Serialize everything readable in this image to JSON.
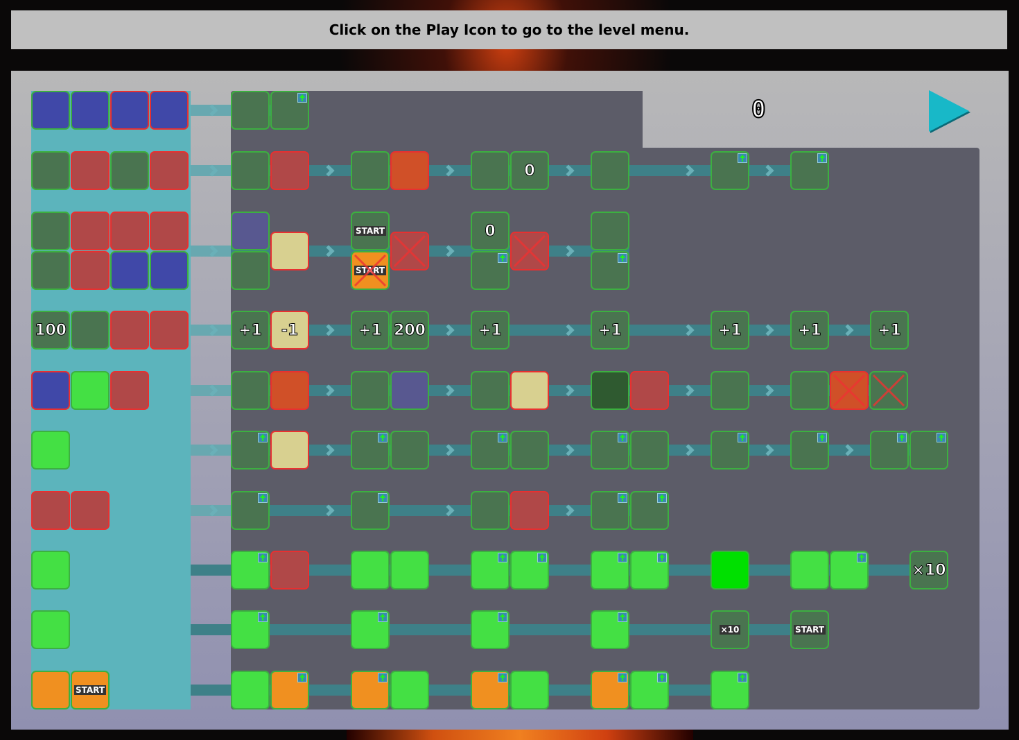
{
  "header": {
    "instruction": "Click on the Play Icon to go to the level menu."
  },
  "score": "0",
  "play_button": {
    "icon": "play-icon",
    "color": "#18b8c8"
  },
  "colors": {
    "dg": "#4a7450",
    "dgb": "#3cb040",
    "red": "#b04848",
    "redb": "#e83030",
    "blue": "#4048a8",
    "yel": "#d8d090",
    "org": "#d05028",
    "bg": "#44e044",
    "pg": "#00e000",
    "pur": "#585890",
    "fire": "#f09020",
    "dk": "#2f5a30"
  },
  "rows": [
    {
      "palette": [
        [
          "blue",
          "dgb"
        ],
        [
          "blue",
          "dgb"
        ],
        [
          "blue",
          "redb"
        ],
        [
          "blue",
          "redb"
        ]
      ],
      "stages": [
        [
          {
            "c": "dg"
          },
          {
            "c": "dg",
            "up": true
          }
        ]
      ]
    },
    {
      "palette": [
        [
          "dg",
          "dgb"
        ],
        [
          "red",
          "redb"
        ],
        [
          "dg",
          "dgb"
        ],
        [
          "red",
          "redb"
        ]
      ],
      "stages": [
        [
          {
            "c": "dg"
          },
          {
            "c": "red"
          }
        ],
        [
          {
            "c": "dg"
          },
          {
            "c": "org"
          }
        ],
        [
          {
            "c": "dg"
          },
          {
            "c": "dg",
            "t": "0"
          }
        ],
        [
          {
            "c": "dg"
          }
        ],
        [
          {
            "c": "dg",
            "up": true
          }
        ],
        [
          {
            "c": "dg",
            "up": true
          }
        ]
      ]
    },
    {
      "double": true,
      "palette": [
        [
          "dg",
          "dgb"
        ],
        [
          "red",
          "redb"
        ],
        [
          "red",
          "redb"
        ],
        [
          "red",
          "redb"
        ],
        [
          "dg",
          "dgb"
        ],
        [
          "red",
          "redb"
        ],
        [
          "blue",
          "dgb"
        ],
        [
          "blue",
          "dgb"
        ]
      ],
      "stages": [
        [
          {
            "c": "pur"
          },
          {
            "c": "dg",
            "r": 1
          },
          {
            "c": "yel",
            "m": 1
          }
        ],
        [
          {
            "c": "dg",
            "lbl": "START"
          },
          {
            "c": "fire",
            "r": 1,
            "lbl": "START",
            "x": true
          },
          {
            "c": "red",
            "m": 1,
            "x": true
          }
        ],
        [
          {
            "c": "dg",
            "t": "0"
          },
          {
            "c": "dg",
            "r": 1,
            "up": true
          },
          {
            "c": "red",
            "m": 1,
            "x": true
          }
        ],
        [
          {
            "c": "dg"
          },
          {
            "c": "dg",
            "r": 1,
            "up": true
          }
        ]
      ]
    },
    {
      "palette": [
        [
          "dg",
          "dgb",
          "100"
        ],
        [
          "dg",
          "dgb"
        ],
        [
          "red",
          "redb"
        ],
        [
          "red",
          "redb"
        ]
      ],
      "stages": [
        [
          {
            "c": "dg",
            "t": "+1"
          },
          {
            "c": "yel",
            "t": "-1"
          }
        ],
        [
          {
            "c": "dg",
            "t": "+1"
          },
          {
            "c": "dg",
            "t": "200"
          }
        ],
        [
          {
            "c": "dg",
            "t": "+1"
          }
        ],
        [
          {
            "c": "dg",
            "t": "+1"
          }
        ],
        [
          {
            "c": "dg",
            "t": "+1"
          }
        ],
        [
          {
            "c": "dg",
            "t": "+1"
          }
        ],
        [
          {
            "c": "dg",
            "t": "+1"
          }
        ]
      ]
    },
    {
      "palette": [
        [
          "blue",
          "redb"
        ],
        [
          "bg",
          "dgb"
        ],
        [
          "red",
          "redb"
        ]
      ],
      "stages": [
        [
          {
            "c": "dg"
          },
          {
            "c": "org"
          }
        ],
        [
          {
            "c": "dg"
          },
          {
            "c": "pur"
          }
        ],
        [
          {
            "c": "dg"
          },
          {
            "c": "yel"
          }
        ],
        [
          {
            "c": "dk"
          },
          {
            "c": "red"
          }
        ],
        [
          {
            "c": "dg"
          }
        ],
        [
          {
            "c": "dg"
          },
          {
            "c": "org",
            "x": true
          },
          {
            "c": "dg",
            "x": true
          }
        ]
      ]
    },
    {
      "palette": [
        [
          "bg",
          "dgb"
        ]
      ],
      "stages": [
        [
          {
            "c": "dg",
            "up": true
          },
          {
            "c": "yel"
          }
        ],
        [
          {
            "c": "dg",
            "up": true
          },
          {
            "c": "dg"
          }
        ],
        [
          {
            "c": "dg",
            "up": true
          },
          {
            "c": "dg"
          }
        ],
        [
          {
            "c": "dg",
            "up": true
          },
          {
            "c": "dg"
          }
        ],
        [
          {
            "c": "dg",
            "up": true
          }
        ],
        [
          {
            "c": "dg",
            "up": true
          }
        ],
        [
          {
            "c": "dg",
            "up": true
          },
          {
            "c": "dg",
            "up": true
          }
        ]
      ]
    },
    {
      "palette": [
        [
          "red",
          "redb"
        ],
        [
          "red",
          "redb"
        ]
      ],
      "stages": [
        [
          {
            "c": "dg",
            "up": true
          }
        ],
        [
          {
            "c": "dg",
            "up": true
          }
        ],
        [
          {
            "c": "dg"
          },
          {
            "c": "red"
          }
        ],
        [
          {
            "c": "dg",
            "up": true
          },
          {
            "c": "dg",
            "up": true
          }
        ]
      ]
    },
    {
      "plain": true,
      "palette": [
        [
          "bg",
          "dgb"
        ]
      ],
      "stages": [
        [
          {
            "c": "bg",
            "up": true
          },
          {
            "c": "red"
          }
        ],
        [
          {
            "c": "bg"
          },
          {
            "c": "bg"
          }
        ],
        [
          {
            "c": "bg",
            "up": true
          },
          {
            "c": "bg",
            "up": true
          }
        ],
        [
          {
            "c": "bg",
            "up": true
          },
          {
            "c": "bg",
            "up": true
          }
        ],
        [
          {
            "c": "pg"
          }
        ],
        [
          {
            "c": "bg"
          },
          {
            "c": "bg",
            "up": true
          }
        ],
        [
          {
            "c": "dg",
            "t": "×10",
            "s": 1
          }
        ]
      ]
    },
    {
      "plain": true,
      "palette": [
        [
          "bg",
          "dgb"
        ]
      ],
      "stages": [
        [
          {
            "c": "bg",
            "up": true
          }
        ],
        [
          {
            "c": "bg",
            "up": true
          }
        ],
        [
          {
            "c": "bg",
            "up": true
          }
        ],
        [
          {
            "c": "bg",
            "up": true
          }
        ],
        [
          {
            "c": "dg",
            "lbl": "×10"
          }
        ],
        [
          {
            "c": "dg",
            "lbl": "START"
          }
        ]
      ]
    },
    {
      "plain": true,
      "palette": [
        [
          "fire",
          "dgb"
        ],
        [
          "fire",
          "dgb",
          "START"
        ]
      ],
      "stages": [
        [
          {
            "c": "bg"
          },
          {
            "c": "fire",
            "up": true
          }
        ],
        [
          {
            "c": "fire",
            "up": true
          },
          {
            "c": "bg"
          }
        ],
        [
          {
            "c": "fire",
            "up": true
          },
          {
            "c": "bg"
          }
        ],
        [
          {
            "c": "fire",
            "up": true
          },
          {
            "c": "bg",
            "up": true
          }
        ],
        [
          {
            "c": "bg",
            "up": true
          }
        ]
      ]
    }
  ]
}
